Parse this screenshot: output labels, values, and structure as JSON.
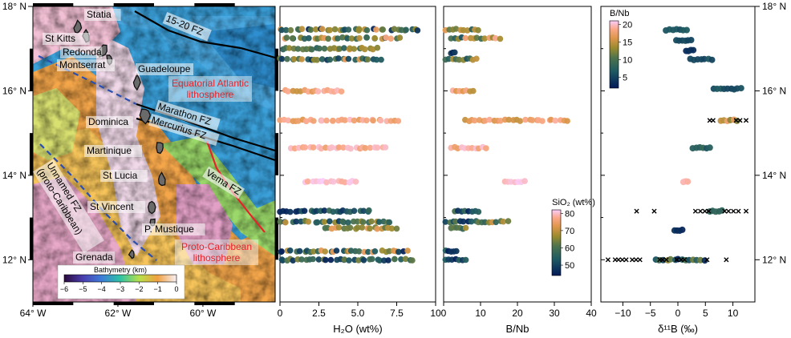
{
  "chart_data": [
    {
      "type": "map",
      "xlim": [
        -64,
        -58.3
      ],
      "ylim": [
        11,
        18
      ],
      "lon_ticks": [
        {
          "v": -64,
          "label": "64° W"
        },
        {
          "v": -62,
          "label": "62° W"
        },
        {
          "v": -60,
          "label": "60° W"
        }
      ],
      "lat_ticks": [
        {
          "v": 18,
          "label": "18° N"
        },
        {
          "v": 16,
          "label": "16° N"
        },
        {
          "v": 14,
          "label": "14° N"
        },
        {
          "v": 12,
          "label": "12° N"
        }
      ],
      "islands": [
        {
          "name": "Statia",
          "lon": -62.95,
          "lat": 17.49
        },
        {
          "name": "St Kitts",
          "lon": -62.75,
          "lat": 17.3
        },
        {
          "name": "Redonda",
          "lon": -62.35,
          "lat": 16.94
        },
        {
          "name": "Montserrat",
          "lon": -62.2,
          "lat": 16.74
        },
        {
          "name": "Guadeloupe",
          "lon": -61.55,
          "lat": 16.2
        },
        {
          "name": "Dominica",
          "lon": -61.35,
          "lat": 15.42
        },
        {
          "name": "Martinique",
          "lon": -61.0,
          "lat": 14.65
        },
        {
          "name": "St Lucia",
          "lon": -60.97,
          "lat": 13.9
        },
        {
          "name": "St Vincent",
          "lon": -61.2,
          "lat": 13.25
        },
        {
          "name": "P. Mustique",
          "lon": -61.18,
          "lat": 12.88
        },
        {
          "name": "Grenada",
          "lon": -61.67,
          "lat": 12.12
        }
      ],
      "fracture_zones": [
        "15-20 FZ",
        "Marathon FZ",
        "Mercurius FZ",
        "Vema FZ",
        "Unnamed FZ\n(proto-Caribbean)"
      ],
      "regions": [
        {
          "label": "Equatorial Atlantic\nlithosphere",
          "color": "#e8232a"
        },
        {
          "label": "Proto-Caribbean\nlithosphere",
          "color": "#e8232a"
        }
      ],
      "colorbar": {
        "title": "Bathymetry (km)",
        "ticks": [
          "−6",
          "−5",
          "−4",
          "−3",
          "−2",
          "−1",
          "0"
        ]
      }
    },
    {
      "type": "scatter",
      "xlabel": "H₂O (wt%)",
      "xlim": [
        0,
        10
      ],
      "x_ticks": [
        0,
        2.5,
        5.0,
        7.5,
        10
      ],
      "x_tick_labels": [
        "0",
        "2.5",
        "5.0",
        "7.5",
        "10"
      ],
      "ylim": [
        11,
        18
      ],
      "color_by": "SiO2",
      "rows": [
        {
          "lat": 17.45,
          "min": 0.0,
          "max": 9.0,
          "c": [
            45,
            75
          ]
        },
        {
          "lat": 17.25,
          "min": 0.2,
          "max": 7.7,
          "c": [
            52,
            78
          ]
        },
        {
          "lat": 17.0,
          "min": 0.2,
          "max": 6.3,
          "c": [
            55,
            72
          ]
        },
        {
          "lat": 16.75,
          "min": 0.0,
          "max": 6.5,
          "c": [
            48,
            75
          ]
        },
        {
          "lat": 16.0,
          "min": 0.3,
          "max": 4.0,
          "c": [
            70,
            80
          ]
        },
        {
          "lat": 15.3,
          "min": 0.0,
          "max": 7.6,
          "c": [
            72,
            80
          ]
        },
        {
          "lat": 14.65,
          "min": 0.7,
          "max": 6.8,
          "c": [
            74,
            81
          ]
        },
        {
          "lat": 13.85,
          "min": 1.6,
          "max": 4.9,
          "c": [
            78,
            82
          ]
        },
        {
          "lat": 13.15,
          "min": 0.0,
          "max": 5.8,
          "c": [
            45,
            58
          ]
        },
        {
          "lat": 12.9,
          "min": 0.0,
          "max": 7.1,
          "c": [
            48,
            72
          ]
        },
        {
          "lat": 12.75,
          "min": 2.9,
          "max": 7.5,
          "c": [
            60,
            75
          ]
        },
        {
          "lat": 12.2,
          "min": 0.0,
          "max": 8.2,
          "c": [
            45,
            75
          ]
        },
        {
          "lat": 12.0,
          "min": 0.0,
          "max": 8.5,
          "c": [
            44,
            65
          ]
        }
      ]
    },
    {
      "type": "scatter",
      "xlabel": "B/Nb",
      "xlim": [
        0,
        40
      ],
      "x_ticks": [
        0,
        10,
        20,
        30,
        40
      ],
      "x_tick_labels": [
        "0",
        "10",
        "20",
        "30",
        "40"
      ],
      "ylim": [
        11,
        18
      ],
      "color_by": "SiO2",
      "rows": [
        {
          "lat": 17.45,
          "min": 0.5,
          "max": 9.5,
          "c": [
            45,
            75
          ]
        },
        {
          "lat": 17.25,
          "min": 2.0,
          "max": 15.3,
          "c": [
            52,
            78
          ]
        },
        {
          "lat": 16.9,
          "min": 2.0,
          "max": 3.0,
          "c": [
            45,
            50
          ]
        },
        {
          "lat": 16.75,
          "min": 0.5,
          "max": 9.0,
          "c": [
            50,
            75
          ]
        },
        {
          "lat": 16.0,
          "min": 2.5,
          "max": 8.0,
          "c": [
            68,
            80
          ]
        },
        {
          "lat": 15.3,
          "min": 5.5,
          "max": 33.5,
          "c": [
            70,
            80
          ]
        },
        {
          "lat": 14.65,
          "min": 2.0,
          "max": 11.5,
          "c": [
            74,
            81
          ]
        },
        {
          "lat": 13.85,
          "min": 16.5,
          "max": 22.0,
          "c": [
            79,
            82
          ]
        },
        {
          "lat": 13.15,
          "min": 3.0,
          "max": 9.5,
          "c": [
            45,
            60
          ]
        },
        {
          "lat": 12.9,
          "min": 0.5,
          "max": 17.5,
          "c": [
            45,
            72
          ]
        },
        {
          "lat": 12.75,
          "min": 2.0,
          "max": 6.0,
          "c": [
            55,
            70
          ]
        },
        {
          "lat": 12.2,
          "min": 0.5,
          "max": 3.5,
          "c": [
            45,
            55
          ]
        },
        {
          "lat": 12.0,
          "min": 0.5,
          "max": 6.0,
          "c": [
            44,
            55
          ]
        }
      ],
      "colorbar": {
        "title": "SiO₂ (wt%)",
        "range": [
          44,
          82
        ],
        "ticks": [
          50,
          60,
          70,
          80
        ]
      }
    },
    {
      "type": "scatter",
      "xlabel": "δ¹¹B (‰)",
      "xlim": [
        -14,
        14
      ],
      "x_ticks": [
        -10,
        -5,
        0,
        5,
        10
      ],
      "x_tick_labels": [
        "−10",
        "−5",
        "0",
        "5",
        "10"
      ],
      "ylim": [
        11,
        18
      ],
      "y_ticks": [
        {
          "v": 18,
          "label": "18° N"
        },
        {
          "v": 16,
          "label": "16° N"
        },
        {
          "v": 14,
          "label": "14° N"
        },
        {
          "v": 12,
          "label": "12° N"
        }
      ],
      "color_by": "B/Nb",
      "rows": [
        {
          "lat": 17.45,
          "min": -2.2,
          "max": 1.6,
          "c": [
            5,
            7
          ]
        },
        {
          "lat": 17.2,
          "min": -0.3,
          "max": 2.4,
          "c": [
            5,
            6
          ]
        },
        {
          "lat": 16.95,
          "min": 1.5,
          "max": 2.8,
          "c": [
            3,
            4
          ]
        },
        {
          "lat": 16.75,
          "min": 2.2,
          "max": 6.2,
          "c": [
            5,
            7
          ]
        },
        {
          "lat": 16.05,
          "min": 6.5,
          "max": 11.5,
          "c": [
            5,
            7
          ]
        },
        {
          "lat": 15.3,
          "min": 7.8,
          "max": 10.8,
          "c": [
            12,
            19
          ]
        },
        {
          "lat": 14.65,
          "min": 2.7,
          "max": 5.8,
          "c": [
            6,
            9
          ]
        },
        {
          "lat": 13.85,
          "min": 1.0,
          "max": 1.8,
          "c": [
            19,
            20
          ]
        },
        {
          "lat": 13.15,
          "min": 5.8,
          "max": 8.0,
          "c": [
            7,
            9
          ]
        },
        {
          "lat": 12.7,
          "min": -0.6,
          "max": 0.8,
          "c": [
            3,
            4
          ]
        },
        {
          "lat": 12.0,
          "min": -4.0,
          "max": 4.9,
          "c": [
            3,
            16
          ]
        }
      ],
      "x_markers": [
        {
          "lat": 15.3,
          "x": [
            5.8,
            6.4,
            10.6,
            11.3,
            12.4
          ]
        },
        {
          "lat": 13.15,
          "x": [
            -7.5,
            -4.3,
            3.2,
            4.1,
            4.9,
            5.6,
            8.5,
            9.2,
            10.1,
            11.0,
            12.4
          ]
        },
        {
          "lat": 12.0,
          "x": [
            -12.7,
            -11.4,
            -10.8,
            -10.1,
            -9.4,
            -8.3,
            -7.6,
            -6.9,
            -3.3,
            -2.8,
            -2.1,
            -0.2,
            0.6,
            1.2,
            5.3,
            8.8
          ]
        }
      ],
      "colorbar": {
        "title": "B/Nb",
        "range": [
          2,
          21
        ],
        "ticks": [
          5,
          10,
          15,
          20
        ]
      }
    }
  ]
}
